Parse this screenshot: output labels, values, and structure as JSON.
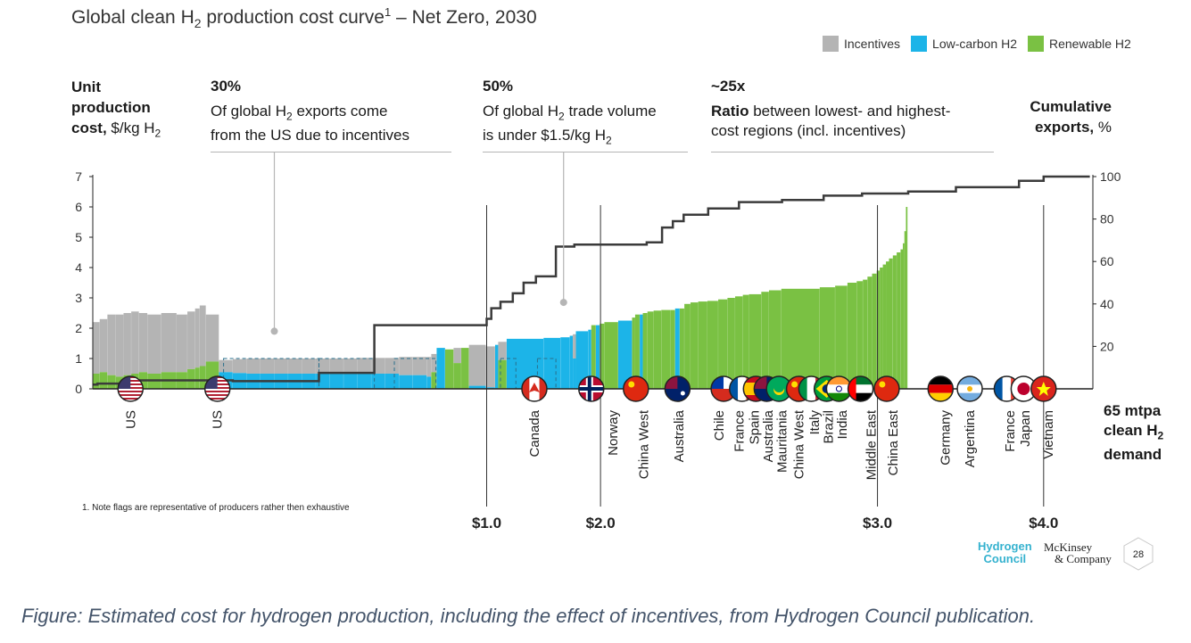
{
  "chart_data": {
    "type": "cost_curve",
    "title": "Global clean H2 production cost curve1 – Net Zero, 2030",
    "title_parts": {
      "main": "Global clean H",
      "sub": "2",
      "rest": " production cost curve",
      "sup": "1",
      "tail": " – Net Zero, 2030"
    },
    "legend": [
      {
        "label": "Incentives",
        "color": "#b4b4b4"
      },
      {
        "label": "Low-carbon H2",
        "color": "#1cb4e8"
      },
      {
        "label": "Renewable H2",
        "color": "#7ac143"
      }
    ],
    "y_left": {
      "label_line1": "Unit",
      "label_line2": "production",
      "label_line3_bold": "cost,",
      "label_line3_rest": " $/kg H",
      "label_sub": "2",
      "ticks": [
        "0",
        "1",
        "2",
        "3",
        "4",
        "5",
        "6",
        "7"
      ],
      "range": [
        0,
        7
      ]
    },
    "y_right": {
      "label_line1": "Cumulative",
      "label_line2_bold": "exports,",
      "label_line2_rest": " %",
      "ticks": [
        "20",
        "40",
        "60",
        "80",
        "100"
      ],
      "range": [
        0,
        100
      ]
    },
    "x_axis": {
      "unit": "mtpa",
      "total": 65,
      "label_line1": "65 mtpa",
      "label_line2": "clean H",
      "label_line2_sub": "2",
      "label_line3": "demand",
      "price_markers": [
        {
          "label": "$1.0",
          "at": 25.6
        },
        {
          "label": "$2.0",
          "at": 33.0
        },
        {
          "label": "$3.0",
          "at": 51.0
        },
        {
          "label": "$4.0",
          "at": 61.8
        }
      ]
    },
    "annotations": [
      {
        "pct": "30%",
        "line1": "Of global H",
        "line1_sub": "2",
        "line1_rest": " exports come",
        "line2": "from the US due to incentives",
        "point_x": 11.8,
        "point_y": 1.9
      },
      {
        "pct": "50%",
        "line1": "Of global H",
        "line1_sub": "2",
        "line1_rest": " trade volume",
        "line2": "is under $1.5/kg H",
        "line2_sub": "2",
        "point_x": 30.6,
        "point_y": 2.85
      },
      {
        "pct": "~25x",
        "bold_word": "Ratio",
        "line1_rest": " between lowest- and highest-",
        "line2": "cost regions (incl. incentives)"
      }
    ],
    "segments": [
      {
        "w": 0.45,
        "cost": 2.2,
        "inc": 0.5,
        "type": "renewable"
      },
      {
        "w": 0.5,
        "cost": 2.3,
        "inc": 0.55,
        "type": "renewable"
      },
      {
        "w": 0.55,
        "cost": 2.45,
        "inc": 0.45,
        "type": "renewable"
      },
      {
        "w": 0.5,
        "cost": 2.45,
        "inc": 0.4,
        "type": "renewable"
      },
      {
        "w": 0.5,
        "cost": 2.5,
        "inc": 0.45,
        "type": "renewable"
      },
      {
        "w": 0.5,
        "cost": 2.55,
        "inc": 0.5,
        "type": "renewable"
      },
      {
        "w": 0.55,
        "cost": 2.5,
        "inc": 0.55,
        "type": "renewable"
      },
      {
        "w": 0.9,
        "cost": 2.45,
        "inc": 0.5,
        "type": "renewable"
      },
      {
        "w": 1.0,
        "cost": 2.5,
        "inc": 0.55,
        "type": "renewable"
      },
      {
        "w": 0.7,
        "cost": 2.45,
        "inc": 0.55,
        "type": "renewable"
      },
      {
        "w": 0.5,
        "cost": 2.55,
        "inc": 0.65,
        "type": "renewable"
      },
      {
        "w": 0.3,
        "cost": 2.65,
        "inc": 0.7,
        "type": "renewable"
      },
      {
        "w": 0.4,
        "cost": 2.75,
        "inc": 0.75,
        "type": "renewable"
      },
      {
        "w": 0.85,
        "cost": 2.45,
        "inc": 0.9,
        "type": "renewable"
      },
      {
        "w": 0.9,
        "cost": 0.95,
        "inc": 0.55,
        "type": "lowcarbon"
      },
      {
        "w": 0.9,
        "cost": 0.98,
        "inc": 0.52,
        "type": "lowcarbon"
      },
      {
        "w": 0.9,
        "cost": 1.0,
        "inc": 0.5,
        "type": "lowcarbon"
      },
      {
        "w": 0.9,
        "cost": 1.0,
        "inc": 0.5,
        "type": "lowcarbon"
      },
      {
        "w": 0.9,
        "cost": 1.0,
        "inc": 0.5,
        "type": "lowcarbon"
      },
      {
        "w": 0.9,
        "cost": 1.0,
        "inc": 0.5,
        "type": "lowcarbon"
      },
      {
        "w": 0.9,
        "cost": 1.0,
        "inc": 0.5,
        "type": "lowcarbon"
      },
      {
        "w": 0.9,
        "cost": 1.0,
        "inc": 0.5,
        "type": "lowcarbon"
      },
      {
        "w": 0.9,
        "cost": 1.0,
        "inc": 0.5,
        "type": "lowcarbon"
      },
      {
        "w": 0.9,
        "cost": 1.0,
        "inc": 0.5,
        "type": "lowcarbon"
      },
      {
        "w": 0.9,
        "cost": 1.02,
        "inc": 0.5,
        "type": "lowcarbon"
      },
      {
        "w": 0.9,
        "cost": 1.02,
        "inc": 0.5,
        "type": "lowcarbon"
      },
      {
        "w": 0.9,
        "cost": 1.02,
        "inc": 0.5,
        "type": "lowcarbon"
      },
      {
        "w": 0.9,
        "cost": 1.05,
        "inc": 0.45,
        "type": "lowcarbon"
      },
      {
        "w": 0.9,
        "cost": 1.05,
        "inc": 0.45,
        "type": "lowcarbon"
      },
      {
        "w": 0.3,
        "cost": 1.05,
        "inc": 0.4,
        "type": "lowcarbon"
      },
      {
        "w": 0.35,
        "cost": 1.15,
        "inc": 0.55,
        "type": "renewable"
      },
      {
        "w": 0.55,
        "cost": 1.35,
        "inc": 0,
        "type": "lowcarbon"
      },
      {
        "w": 0.55,
        "cost": 1.3,
        "inc": 0,
        "type": "renewable"
      },
      {
        "w": 0.5,
        "cost": 1.35,
        "inc": 0.85,
        "type": "renewable"
      },
      {
        "w": 0.5,
        "cost": 1.35,
        "inc": 0,
        "type": "renewable"
      },
      {
        "w": 1.1,
        "cost": 1.45,
        "inc": 0.1,
        "type": "lowcarbon"
      },
      {
        "w": 0.6,
        "cost": 1.4,
        "inc": 0.05,
        "type": "lowcarbon"
      },
      {
        "w": 0.2,
        "cost": 1.45,
        "inc": 0,
        "type": "lowcarbon"
      },
      {
        "w": 0.55,
        "cost": 1.55,
        "inc": 0.95,
        "type": "renewable"
      },
      {
        "w": 2.4,
        "cost": 1.65,
        "inc": 0,
        "type": "lowcarbon"
      },
      {
        "w": 1.1,
        "cost": 1.68,
        "inc": 0,
        "type": "lowcarbon"
      },
      {
        "w": 0.6,
        "cost": 1.7,
        "inc": 0,
        "type": "lowcarbon"
      },
      {
        "w": 0.2,
        "cost": 1.75,
        "inc": 0,
        "type": "lowcarbon"
      },
      {
        "w": 0.2,
        "cost": 1.8,
        "inc": 1.0,
        "type": "lowcarbon"
      },
      {
        "w": 0.8,
        "cost": 1.9,
        "inc": 0,
        "type": "lowcarbon"
      },
      {
        "w": 0.2,
        "cost": 1.95,
        "inc": 0,
        "type": "lowcarbon"
      },
      {
        "w": 0.3,
        "cost": 2.1,
        "inc": 0,
        "type": "renewable"
      },
      {
        "w": 0.25,
        "cost": 2.1,
        "inc": 0,
        "type": "lowcarbon"
      },
      {
        "w": 0.3,
        "cost": 2.15,
        "inc": 0,
        "type": "renewable"
      },
      {
        "w": 0.9,
        "cost": 2.2,
        "inc": 0,
        "type": "renewable"
      },
      {
        "w": 0.9,
        "cost": 2.25,
        "inc": 0,
        "type": "lowcarbon"
      },
      {
        "w": 0.2,
        "cost": 2.35,
        "inc": 0,
        "type": "renewable"
      },
      {
        "w": 0.3,
        "cost": 2.45,
        "inc": 0,
        "type": "renewable"
      },
      {
        "w": 0.2,
        "cost": 2.45,
        "inc": 0,
        "type": "lowcarbon"
      },
      {
        "w": 0.3,
        "cost": 2.5,
        "inc": 0,
        "type": "renewable"
      },
      {
        "w": 0.4,
        "cost": 2.55,
        "inc": 0,
        "type": "renewable"
      },
      {
        "w": 0.5,
        "cost": 2.58,
        "inc": 0,
        "type": "renewable"
      },
      {
        "w": 0.6,
        "cost": 2.6,
        "inc": 0,
        "type": "renewable"
      },
      {
        "w": 0.3,
        "cost": 2.6,
        "inc": 0,
        "type": "renewable"
      },
      {
        "w": 0.3,
        "cost": 2.65,
        "inc": 0,
        "type": "lowcarbon"
      },
      {
        "w": 0.3,
        "cost": 2.65,
        "inc": 0,
        "type": "renewable"
      },
      {
        "w": 0.4,
        "cost": 2.8,
        "inc": 0,
        "type": "renewable"
      },
      {
        "w": 0.5,
        "cost": 2.85,
        "inc": 0,
        "type": "renewable"
      },
      {
        "w": 0.6,
        "cost": 2.88,
        "inc": 0,
        "type": "renewable"
      },
      {
        "w": 0.7,
        "cost": 2.9,
        "inc": 0,
        "type": "renewable"
      },
      {
        "w": 0.6,
        "cost": 2.95,
        "inc": 0,
        "type": "renewable"
      },
      {
        "w": 0.5,
        "cost": 3.0,
        "inc": 0,
        "type": "renewable"
      },
      {
        "w": 0.5,
        "cost": 3.05,
        "inc": 0,
        "type": "renewable"
      },
      {
        "w": 0.4,
        "cost": 3.1,
        "inc": 0,
        "type": "renewable"
      },
      {
        "w": 0.8,
        "cost": 3.12,
        "inc": 0,
        "type": "renewable"
      },
      {
        "w": 0.5,
        "cost": 3.2,
        "inc": 0,
        "type": "renewable"
      },
      {
        "w": 0.8,
        "cost": 3.25,
        "inc": 0,
        "type": "renewable"
      },
      {
        "w": 2.5,
        "cost": 3.3,
        "inc": 0,
        "type": "renewable"
      },
      {
        "w": 1.0,
        "cost": 3.35,
        "inc": 0,
        "type": "renewable"
      },
      {
        "w": 0.8,
        "cost": 3.4,
        "inc": 0,
        "type": "renewable"
      },
      {
        "w": 0.6,
        "cost": 3.5,
        "inc": 0,
        "type": "renewable"
      },
      {
        "w": 0.4,
        "cost": 3.55,
        "inc": 0,
        "type": "renewable"
      },
      {
        "w": 0.3,
        "cost": 3.6,
        "inc": 0,
        "type": "renewable"
      },
      {
        "w": 0.3,
        "cost": 3.7,
        "inc": 0,
        "type": "renewable"
      },
      {
        "w": 0.3,
        "cost": 3.8,
        "inc": 0,
        "type": "renewable"
      },
      {
        "w": 0.2,
        "cost": 3.9,
        "inc": 0,
        "type": "renewable"
      },
      {
        "w": 0.2,
        "cost": 4.0,
        "inc": 0,
        "type": "renewable"
      },
      {
        "w": 0.2,
        "cost": 4.1,
        "inc": 0,
        "type": "renewable"
      },
      {
        "w": 0.2,
        "cost": 4.2,
        "inc": 0,
        "type": "renewable"
      },
      {
        "w": 0.25,
        "cost": 4.3,
        "inc": 0,
        "type": "renewable"
      },
      {
        "w": 0.25,
        "cost": 4.4,
        "inc": 0,
        "type": "renewable"
      },
      {
        "w": 0.25,
        "cost": 4.5,
        "inc": 0,
        "type": "renewable"
      },
      {
        "w": 0.15,
        "cost": 4.6,
        "inc": 0,
        "type": "renewable"
      },
      {
        "w": 0.1,
        "cost": 4.8,
        "inc": 0,
        "type": "renewable"
      },
      {
        "w": 0.1,
        "cost": 5.2,
        "inc": 0,
        "type": "renewable"
      },
      {
        "w": 0.1,
        "cost": 6.0,
        "inc": 0,
        "type": "renewable"
      }
    ],
    "cumulative_exports": {
      "x": [
        0,
        0.3,
        0.3,
        3.0,
        3.0,
        9.1,
        9.1,
        14.7,
        14.7,
        18.3,
        18.3,
        25.6,
        25.6,
        25.9,
        25.9,
        26.5,
        26.5,
        27.3,
        27.3,
        28.0,
        28.0,
        28.8,
        28.8,
        30.1,
        30.1,
        31.3,
        31.3,
        36.0,
        36.0,
        37.0,
        37.0,
        37.7,
        37.7,
        38.4,
        38.4,
        40.0,
        40.0,
        42.0,
        42.0,
        44.8,
        44.8,
        47.5,
        47.5,
        50.0,
        50.0,
        53.0,
        53.0,
        56.1,
        56.1,
        60.2,
        60.2,
        61.8,
        61.8,
        64.8
      ],
      "y": [
        2,
        2,
        2.5,
        2.5,
        4,
        4,
        3.6,
        3.6,
        7.5,
        7.5,
        30,
        30,
        33,
        33,
        38,
        38,
        41,
        41,
        45,
        45,
        50,
        50,
        53,
        53,
        67,
        67,
        68,
        68,
        69,
        69,
        76,
        76,
        79,
        79,
        82,
        82,
        85,
        85,
        88,
        88,
        89,
        89,
        91,
        91,
        92,
        92,
        93,
        93,
        95,
        95,
        98,
        98,
        100,
        100
      ]
    },
    "flags": [
      {
        "code": "us",
        "at": 2.45,
        "label": "US"
      },
      {
        "code": "us",
        "at": 8.1,
        "label": ""
      },
      {
        "code": "ca",
        "at": 28.7,
        "label": ""
      },
      {
        "code": "no",
        "at": 32.4,
        "label": ""
      },
      {
        "code": "cn",
        "at": 35.3,
        "label": ""
      },
      {
        "code": "au",
        "at": 38.0,
        "label": ""
      },
      {
        "code": "cl",
        "at": 41.0,
        "label": ""
      },
      {
        "code": "fr",
        "at": 42.2,
        "label": ""
      },
      {
        "code": "es",
        "at": 43.1,
        "label": ""
      },
      {
        "code": "au",
        "at": 43.8,
        "label": ""
      },
      {
        "code": "mr",
        "at": 44.6,
        "label": ""
      },
      {
        "code": "cn",
        "at": 45.9,
        "label": ""
      },
      {
        "code": "it",
        "at": 46.7,
        "label": ""
      },
      {
        "code": "br",
        "at": 47.7,
        "label": ""
      },
      {
        "code": "in",
        "at": 48.5,
        "label": ""
      },
      {
        "code": "ae",
        "at": 49.9,
        "label": ""
      },
      {
        "code": "cn",
        "at": 51.6,
        "label": ""
      },
      {
        "code": "de",
        "at": 55.1,
        "label": ""
      },
      {
        "code": "ar",
        "at": 57.0,
        "label": ""
      },
      {
        "code": "fr",
        "at": 59.4,
        "label": ""
      },
      {
        "code": "jp",
        "at": 60.5,
        "label": ""
      },
      {
        "code": "vn",
        "at": 61.8,
        "label": ""
      }
    ],
    "region_labels": [
      {
        "text": "US",
        "at": 2.45
      },
      {
        "text": "US",
        "at": 8.1
      },
      {
        "text": "Canada",
        "at": 28.7
      },
      {
        "text": "Norway",
        "at": 33.8
      },
      {
        "text": "China West",
        "at": 35.8
      },
      {
        "text": "Australia",
        "at": 38.1
      },
      {
        "text": "Chile",
        "at": 40.7
      },
      {
        "text": "France",
        "at": 42.0
      },
      {
        "text": "Spain",
        "at": 43.0
      },
      {
        "text": "Australia",
        "at": 43.9
      },
      {
        "text": "Mauritania",
        "at": 44.8
      },
      {
        "text": "China West",
        "at": 45.9
      },
      {
        "text": "Italy",
        "at": 46.9
      },
      {
        "text": "Brazil",
        "at": 47.8
      },
      {
        "text": "India",
        "at": 48.7
      },
      {
        "text": "Middle East",
        "at": 50.6
      },
      {
        "text": "China East",
        "at": 52.0
      },
      {
        "text": "Germany",
        "at": 55.4
      },
      {
        "text": "Argentina",
        "at": 57.0
      },
      {
        "text": "France",
        "at": 59.6
      },
      {
        "text": "Japan",
        "at": 60.6
      },
      {
        "text": "Vietnam",
        "at": 62.1
      }
    ]
  },
  "footnote": "1.    Note flags are representative of producers rather then exhaustive",
  "branding": {
    "hc_line1": "Hydrogen",
    "hc_line2": "Council",
    "mck_line1": "McKinsey",
    "mck_line2": "& Company",
    "page": "28"
  },
  "caption": "Figure: Estimated cost for hydrogen production, including the effect of incentives, from Hydrogen Council publication."
}
